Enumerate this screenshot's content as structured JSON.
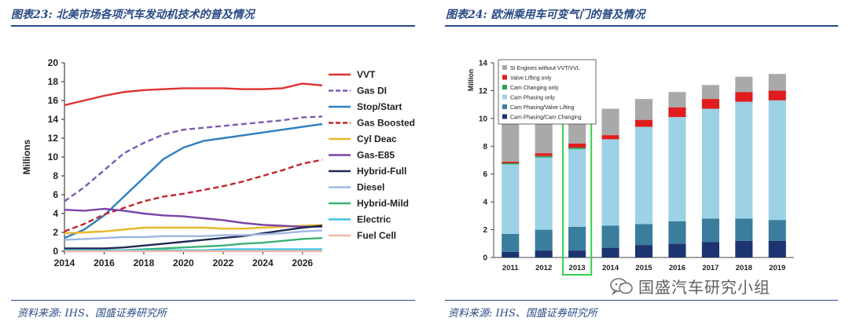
{
  "left": {
    "title": "图表23: 北美市场各项汽车发动机技术的普及情况",
    "source": "资料来源: IHS、国盛证券研究所"
  },
  "right": {
    "title": "图表24: 欧洲乘用车可变气门的普及情况",
    "source": "资料来源: IHS、国盛证券研究所"
  },
  "watermark": {
    "text": "国盛汽车研究小组"
  },
  "chart_data": [
    {
      "type": "line",
      "title": "",
      "xlabel": "",
      "ylabel": "Millions",
      "xlim": [
        2014,
        2027
      ],
      "ylim": [
        0,
        20
      ],
      "x_ticks": [
        2014,
        2016,
        2018,
        2020,
        2022,
        2024,
        2026
      ],
      "y_ticks": [
        0,
        2,
        4,
        6,
        8,
        10,
        12,
        14,
        16,
        18,
        20
      ],
      "grid": false,
      "legend_position": "right",
      "x": [
        2014,
        2015,
        2016,
        2017,
        2018,
        2019,
        2020,
        2021,
        2022,
        2023,
        2024,
        2025,
        2026,
        2027
      ],
      "series": [
        {
          "name": "VVT",
          "color": "#e03030",
          "dash": false,
          "values": [
            15.5,
            16.0,
            16.5,
            16.9,
            17.1,
            17.2,
            17.3,
            17.3,
            17.3,
            17.2,
            17.2,
            17.3,
            17.8,
            17.6
          ]
        },
        {
          "name": "Gas DI",
          "color": "#7a5cb0",
          "dash": true,
          "values": [
            5.3,
            6.8,
            8.6,
            10.4,
            11.5,
            12.4,
            12.9,
            13.1,
            13.3,
            13.5,
            13.7,
            13.9,
            14.2,
            14.3
          ]
        },
        {
          "name": "Stop/Start",
          "color": "#2f7fc1",
          "dash": false,
          "values": [
            1.4,
            2.3,
            3.8,
            5.8,
            7.8,
            9.8,
            11.0,
            11.7,
            12.0,
            12.3,
            12.6,
            12.9,
            13.2,
            13.5
          ]
        },
        {
          "name": "Gas Boosted",
          "color": "#c0262d",
          "dash": true,
          "values": [
            2.1,
            2.9,
            3.9,
            4.6,
            5.3,
            5.8,
            6.1,
            6.5,
            6.9,
            7.4,
            8.0,
            8.6,
            9.3,
            9.7
          ]
        },
        {
          "name": "Cyl Deac",
          "color": "#e9b82a",
          "dash": false,
          "values": [
            1.9,
            2.0,
            2.1,
            2.3,
            2.5,
            2.5,
            2.5,
            2.5,
            2.4,
            2.4,
            2.5,
            2.6,
            2.7,
            2.8
          ]
        },
        {
          "name": "Gas-E85",
          "color": "#7a44a8",
          "dash": false,
          "values": [
            4.4,
            4.3,
            4.5,
            4.3,
            4.0,
            3.8,
            3.7,
            3.5,
            3.3,
            3.0,
            2.8,
            2.7,
            2.6,
            2.6
          ]
        },
        {
          "name": "Hybrid-Full",
          "color": "#1f2a55",
          "dash": false,
          "values": [
            0.3,
            0.3,
            0.3,
            0.4,
            0.6,
            0.8,
            1.0,
            1.2,
            1.4,
            1.6,
            1.9,
            2.2,
            2.5,
            2.7
          ]
        },
        {
          "name": "Diesel",
          "color": "#9fb7e0",
          "dash": false,
          "values": [
            1.2,
            1.3,
            1.4,
            1.5,
            1.5,
            1.6,
            1.6,
            1.6,
            1.7,
            1.7,
            1.8,
            1.9,
            2.1,
            2.2
          ]
        },
        {
          "name": "Hybrid-Mild",
          "color": "#3bb273",
          "dash": false,
          "values": [
            0.0,
            0.0,
            0.1,
            0.1,
            0.2,
            0.3,
            0.4,
            0.5,
            0.6,
            0.8,
            0.9,
            1.1,
            1.3,
            1.4
          ]
        },
        {
          "name": "Electric",
          "color": "#3fc3e8",
          "dash": false,
          "values": [
            0.1,
            0.1,
            0.1,
            0.1,
            0.1,
            0.1,
            0.1,
            0.1,
            0.2,
            0.2,
            0.2,
            0.2,
            0.2,
            0.2
          ]
        },
        {
          "name": "Fuel Cell",
          "color": "#f2b8a8",
          "dash": false,
          "values": [
            0.0,
            0.0,
            0.0,
            0.0,
            0.0,
            0.0,
            0.0,
            0.0,
            0.0,
            0.0,
            0.0,
            0.0,
            0.0,
            0.0
          ]
        }
      ]
    },
    {
      "type": "bar",
      "stacked": true,
      "title": "",
      "xlabel": "",
      "ylabel": "Million",
      "ylim": [
        0,
        14
      ],
      "y_ticks": [
        0,
        2,
        4,
        6,
        8,
        10,
        12,
        14
      ],
      "grid": false,
      "legend_position": "top-left",
      "highlight_category": "2013",
      "highlight_color": "#32d24a",
      "categories": [
        "2011",
        "2012",
        "2013",
        "2014",
        "2015",
        "2016",
        "2017",
        "2018",
        "2019"
      ],
      "series": [
        {
          "name": "Cam Phasing/Cam Changing",
          "color": "#1c3470",
          "values": [
            0.4,
            0.5,
            0.5,
            0.7,
            0.9,
            1.0,
            1.1,
            1.2,
            1.2
          ]
        },
        {
          "name": "Cam Phasing/Valve Lifting",
          "color": "#3a7d9c",
          "values": [
            1.3,
            1.5,
            1.7,
            1.6,
            1.5,
            1.6,
            1.7,
            1.6,
            1.5
          ]
        },
        {
          "name": "Cam Phasing only",
          "color": "#9dd1e5",
          "values": [
            5.0,
            5.2,
            5.6,
            6.2,
            7.0,
            7.5,
            7.9,
            8.4,
            8.6
          ]
        },
        {
          "name": "Cam Changing only",
          "color": "#2e9a5a",
          "values": [
            0.1,
            0.1,
            0.1,
            0.0,
            0.0,
            0.0,
            0.0,
            0.0,
            0.0
          ]
        },
        {
          "name": "Valve Lifting only",
          "color": "#e01c1c",
          "values": [
            0.1,
            0.2,
            0.3,
            0.3,
            0.5,
            0.7,
            0.7,
            0.7,
            0.7
          ]
        },
        {
          "name": "SI Engines without VVT/VVL",
          "color": "#a9a9a9",
          "values": [
            3.5,
            2.5,
            1.8,
            1.9,
            1.5,
            1.1,
            1.0,
            1.1,
            1.2
          ]
        }
      ]
    }
  ]
}
